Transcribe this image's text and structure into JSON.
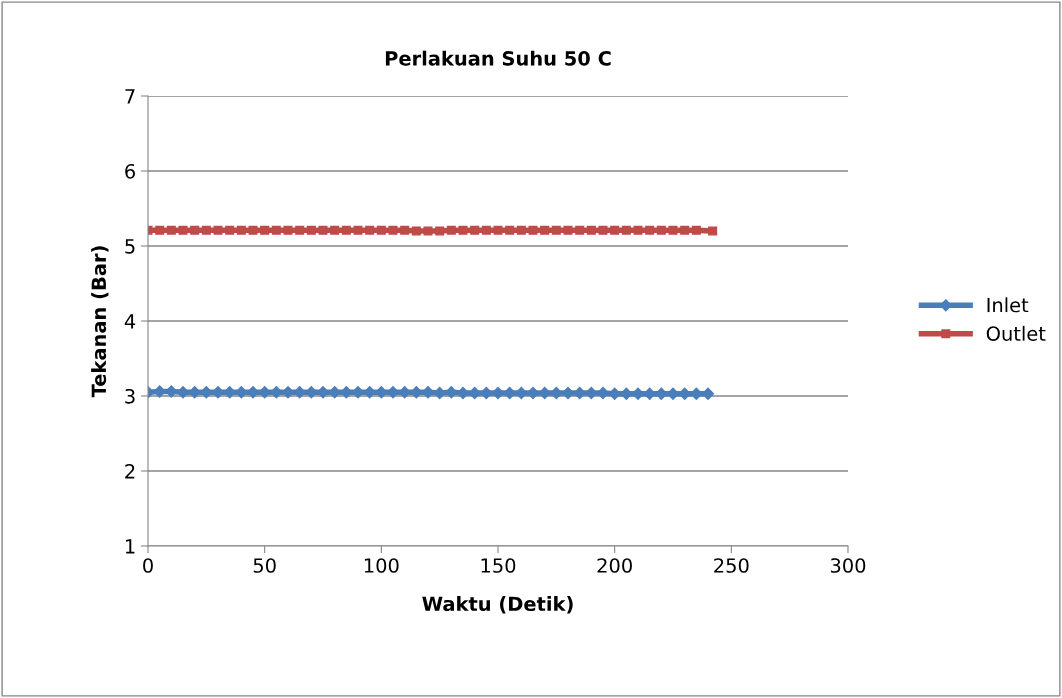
{
  "chart_data": {
    "type": "line",
    "title": "Perlakuan Suhu 50 C",
    "xlabel": "Waktu (Detik)",
    "ylabel": "Tekanan (Bar)",
    "xlim": [
      0,
      300
    ],
    "xticks": [
      0,
      50,
      100,
      150,
      200,
      250,
      300
    ],
    "ylim": [
      1,
      7
    ],
    "yticks": [
      1,
      2,
      3,
      4,
      5,
      6,
      7
    ],
    "grid": "y",
    "legend": "right",
    "line_style": "solid",
    "series": [
      {
        "name": "Inlet",
        "color": "#4a7ebb",
        "marker": "diamond",
        "x": [
          0,
          5,
          10,
          15,
          20,
          25,
          30,
          35,
          40,
          45,
          50,
          55,
          60,
          65,
          70,
          75,
          80,
          85,
          90,
          95,
          100,
          105,
          110,
          115,
          120,
          125,
          130,
          135,
          140,
          145,
          150,
          155,
          160,
          165,
          170,
          175,
          180,
          185,
          190,
          195,
          200,
          205,
          210,
          215,
          220,
          225,
          230,
          235,
          240
        ],
        "values": [
          3.05,
          3.06,
          3.06,
          3.05,
          3.05,
          3.05,
          3.05,
          3.05,
          3.05,
          3.05,
          3.05,
          3.05,
          3.05,
          3.05,
          3.05,
          3.05,
          3.05,
          3.05,
          3.05,
          3.05,
          3.05,
          3.05,
          3.05,
          3.05,
          3.05,
          3.04,
          3.05,
          3.04,
          3.04,
          3.04,
          3.04,
          3.04,
          3.04,
          3.04,
          3.04,
          3.04,
          3.04,
          3.04,
          3.04,
          3.04,
          3.03,
          3.03,
          3.03,
          3.03,
          3.03,
          3.03,
          3.03,
          3.03,
          3.03
        ]
      },
      {
        "name": "Outlet",
        "color": "#be4b48",
        "marker": "square",
        "x": [
          0,
          5,
          10,
          15,
          20,
          25,
          30,
          35,
          40,
          45,
          50,
          55,
          60,
          65,
          70,
          75,
          80,
          85,
          90,
          95,
          100,
          105,
          110,
          115,
          120,
          125,
          130,
          135,
          140,
          145,
          150,
          155,
          160,
          165,
          170,
          175,
          180,
          185,
          190,
          195,
          200,
          205,
          210,
          215,
          220,
          225,
          230,
          235,
          242
        ],
        "values": [
          5.21,
          5.21,
          5.21,
          5.21,
          5.21,
          5.21,
          5.21,
          5.21,
          5.21,
          5.21,
          5.21,
          5.21,
          5.21,
          5.21,
          5.21,
          5.21,
          5.21,
          5.21,
          5.21,
          5.21,
          5.21,
          5.21,
          5.21,
          5.2,
          5.2,
          5.2,
          5.21,
          5.21,
          5.21,
          5.21,
          5.21,
          5.21,
          5.21,
          5.21,
          5.21,
          5.21,
          5.21,
          5.21,
          5.21,
          5.21,
          5.21,
          5.21,
          5.21,
          5.21,
          5.21,
          5.21,
          5.21,
          5.21,
          5.2
        ]
      }
    ]
  }
}
